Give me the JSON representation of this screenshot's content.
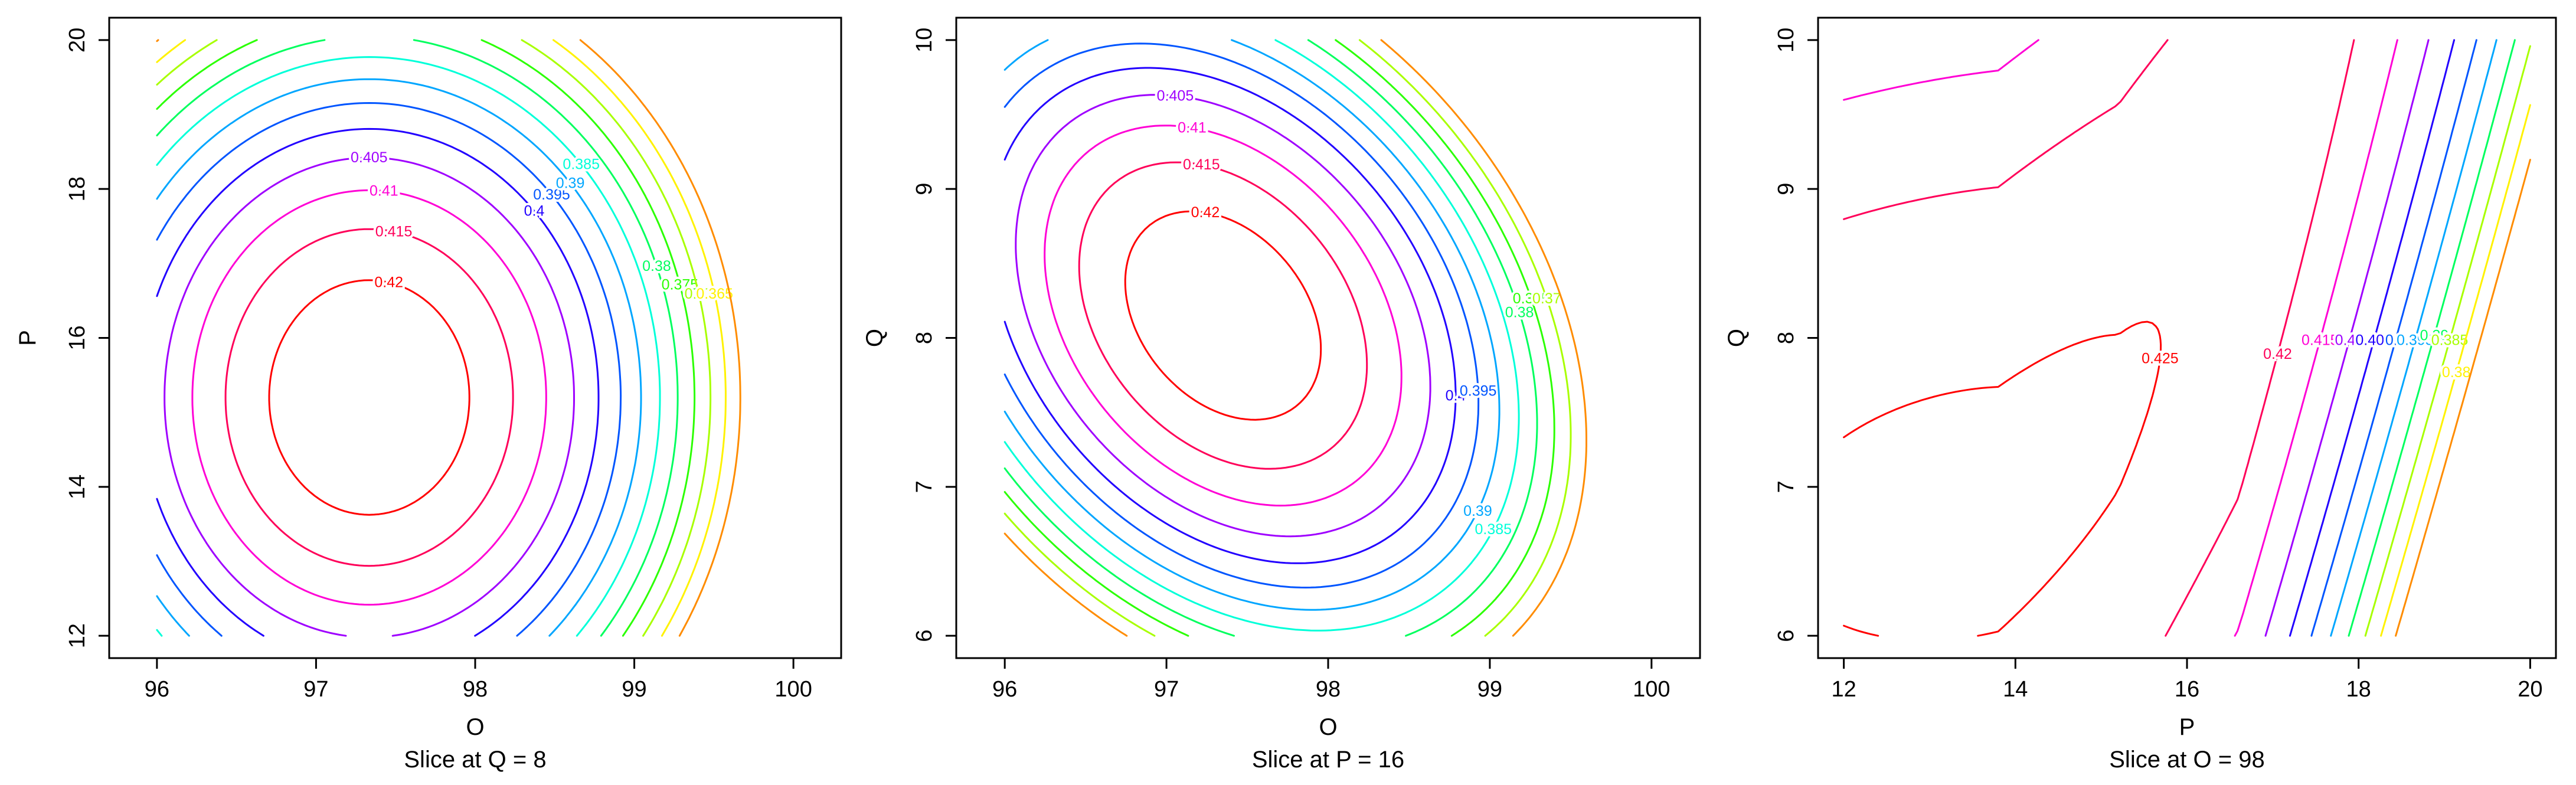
{
  "chart_data": [
    {
      "type": "contour",
      "caption": "Slice at Q = 8",
      "xlabel": "O",
      "ylabel": "P",
      "xlim": [
        95.7,
        100.3
      ],
      "ylim": [
        11.7,
        20.3
      ],
      "xticks": [
        "96",
        "97",
        "98",
        "99",
        "100"
      ],
      "yticks": [
        "12",
        "14",
        "16",
        "18",
        "20"
      ],
      "model": {
        "kind": "ellipse",
        "x_var": "O",
        "y_var": "P",
        "center": [
          97.2,
          15.2
        ],
        "peak": 0.4245,
        "a": 0.0119,
        "b": 0.0019,
        "c": 0.0,
        "d": 0.0032
      },
      "levels": [
        {
          "level": 0.42,
          "label": "0.42",
          "color": "#ff0000"
        },
        {
          "level": 0.415,
          "label": "0.415",
          "color": "#ff0059"
        },
        {
          "level": 0.41,
          "label": "0.41",
          "color": "#ff00d5"
        },
        {
          "level": 0.405,
          "label": "0.405",
          "color": "#9f00ff"
        },
        {
          "level": 0.4,
          "label": "0.4",
          "color": "#2200ff"
        },
        {
          "level": 0.395,
          "label": "0.395",
          "color": "#0055ff"
        },
        {
          "level": 0.39,
          "label": "0.39",
          "color": "#00a6ff"
        },
        {
          "level": 0.385,
          "label": "0.385",
          "color": "#00ffd9"
        },
        {
          "level": 0.38,
          "label": "0.38",
          "color": "#00ff5e"
        },
        {
          "level": 0.375,
          "label": "0.375",
          "color": "#2bff00"
        },
        {
          "level": 0.37,
          "label": "0.37",
          "color": "#a8ff00"
        },
        {
          "level": 0.365,
          "label": "0.365",
          "color": "#fff200"
        },
        {
          "level": 0.36,
          "label": "",
          "color": "#ff8c00"
        }
      ]
    },
    {
      "type": "contour",
      "caption": "Slice at P = 16",
      "xlabel": "O",
      "ylabel": "Q",
      "xlim": [
        95.7,
        100.3
      ],
      "ylim": [
        5.85,
        10.15
      ],
      "xticks": [
        "96",
        "97",
        "98",
        "99",
        "100"
      ],
      "yticks": [
        "6",
        "7",
        "8",
        "9",
        "10"
      ],
      "model": {
        "kind": "ellipse",
        "x_var": "O",
        "y_var": "Q",
        "center": [
          97.35,
          8.15
        ],
        "peak": 0.4243,
        "a": 0.0131,
        "b": 0.0098,
        "c": 0.0073,
        "d": 0.0
      },
      "levels": [
        {
          "level": 0.42,
          "label": "0.42",
          "color": "#ff0000"
        },
        {
          "level": 0.415,
          "label": "0.415",
          "color": "#ff0059"
        },
        {
          "level": 0.41,
          "label": "0.41",
          "color": "#ff00d5"
        },
        {
          "level": 0.405,
          "label": "0.405",
          "color": "#9f00ff"
        },
        {
          "level": 0.4,
          "label": "0.4",
          "color": "#2200ff"
        },
        {
          "level": 0.395,
          "label": "0.395",
          "color": "#0055ff"
        },
        {
          "level": 0.39,
          "label": "0.39",
          "color": "#00a6ff"
        },
        {
          "level": 0.385,
          "label": "0.385",
          "color": "#00ffd9"
        },
        {
          "level": 0.38,
          "label": "0.38",
          "color": "#00ff5e"
        },
        {
          "level": 0.375,
          "label": "0.375",
          "color": "#2bff00"
        },
        {
          "level": 0.37,
          "label": "0.37",
          "color": "#a8ff00"
        },
        {
          "level": 0.365,
          "label": "",
          "color": "#ff8c00"
        }
      ]
    },
    {
      "type": "contour",
      "caption": "Slice at O = 98",
      "xlabel": "P",
      "ylabel": "Q",
      "xlim": [
        11.7,
        20.3
      ],
      "ylim": [
        5.85,
        10.15
      ],
      "xticks": [
        "12",
        "14",
        "16",
        "18",
        "20"
      ],
      "yticks": [
        "6",
        "7",
        "8",
        "9",
        "10"
      ],
      "model": {
        "kind": "rising_ridge",
        "x_var": "P",
        "y_var": "Q",
        "ridge": [
          [
            12.0,
            6.7
          ],
          [
            13.8,
            6.85
          ],
          [
            15.2,
            7.5
          ],
          [
            16.6,
            8.75
          ],
          [
            17.3,
            10.0
          ]
        ],
        "peak": 0.4255,
        "k": 0.00125,
        "rise": 0.011,
        "m": 0.0195
      },
      "levels": [
        {
          "level": 0.425,
          "label": "0.425",
          "color": "#ff0000"
        },
        {
          "level": 0.42,
          "label": "0.42",
          "color": "#ff0059"
        },
        {
          "level": 0.415,
          "label": "0.415",
          "color": "#ff00d5"
        },
        {
          "level": 0.41,
          "label": "0.41",
          "color": "#9f00ff"
        },
        {
          "level": 0.405,
          "label": "0.405",
          "color": "#2200ff"
        },
        {
          "level": 0.4,
          "label": "0.4",
          "color": "#0055ff"
        },
        {
          "level": 0.395,
          "label": "0.395",
          "color": "#00a6ff"
        },
        {
          "level": 0.39,
          "label": "0.39",
          "color": "#00ff5e"
        },
        {
          "level": 0.385,
          "label": "0.385",
          "color": "#a8ff00"
        },
        {
          "level": 0.38,
          "label": "0.38",
          "color": "#fff200"
        },
        {
          "level": 0.375,
          "label": "",
          "color": "#ff8c00"
        }
      ]
    }
  ]
}
